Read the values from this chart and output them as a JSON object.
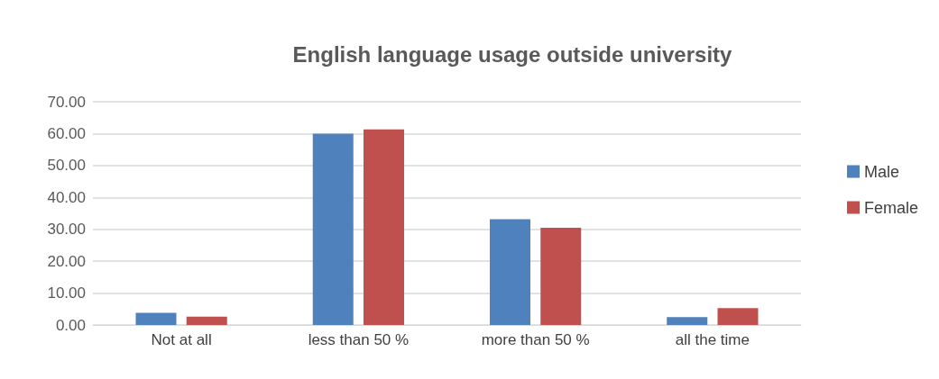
{
  "chart_data": {
    "type": "bar",
    "title": "English language usage outside university",
    "categories": [
      "Not at all",
      "less than 50 %",
      "more than 50 %",
      "all the time"
    ],
    "series": [
      {
        "name": "Male",
        "color": "#4f81bd",
        "values": [
          3.8,
          60.0,
          33.2,
          2.5
        ]
      },
      {
        "name": "Female",
        "color": "#c0504d",
        "values": [
          2.6,
          61.3,
          30.5,
          5.3
        ]
      }
    ],
    "ylim": [
      0,
      70
    ],
    "yticks": [
      {
        "value": 0,
        "label": "0.00"
      },
      {
        "value": 10,
        "label": "10.00"
      },
      {
        "value": 20,
        "label": "20.00"
      },
      {
        "value": 30,
        "label": "30.00"
      },
      {
        "value": 40,
        "label": "40.00"
      },
      {
        "value": 50,
        "label": "50.00"
      },
      {
        "value": 60,
        "label": "60.00"
      },
      {
        "value": 70,
        "label": "70.00"
      }
    ],
    "grid": "y",
    "legend": "right"
  }
}
